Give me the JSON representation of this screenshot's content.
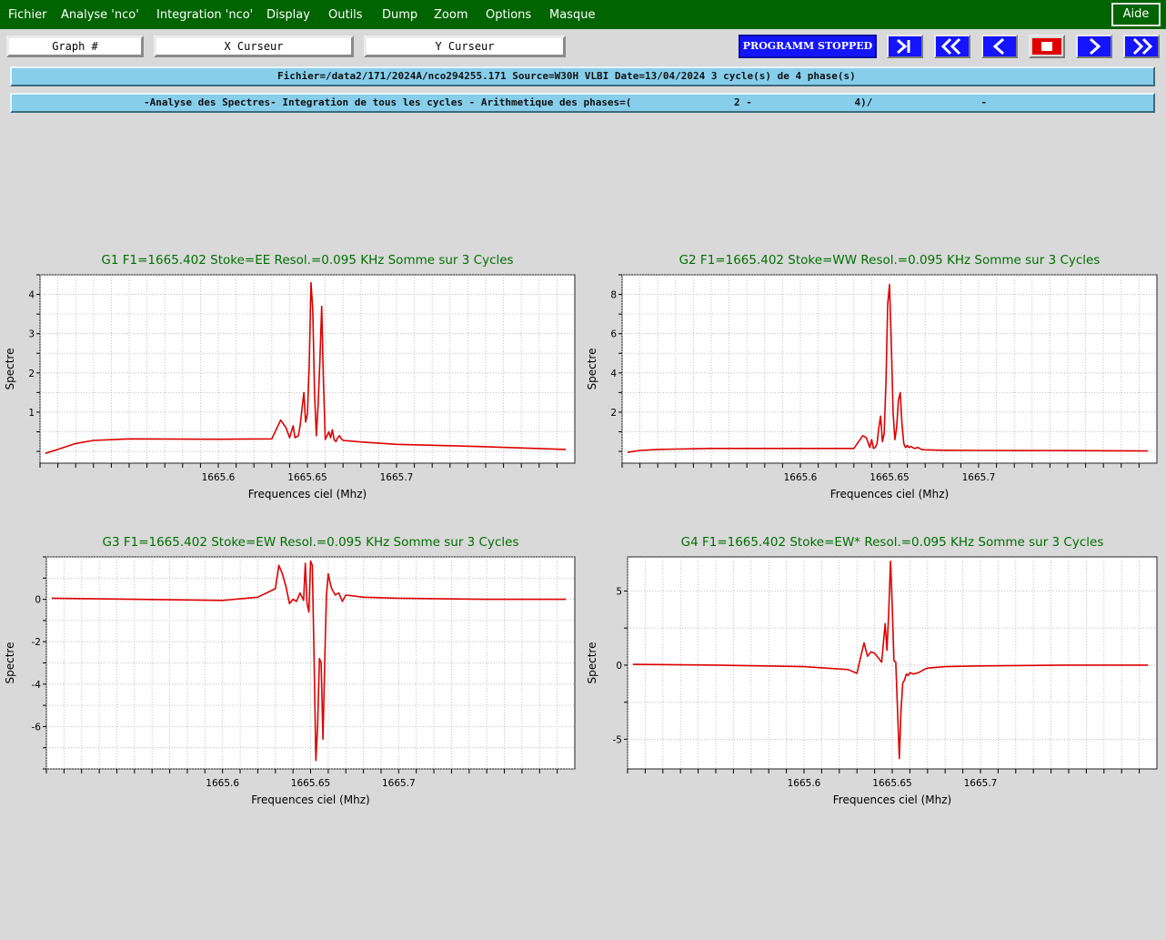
{
  "menu": {
    "items": [
      "Fichier",
      "Analyse 'nco'",
      "Integration 'nco'",
      "Display",
      "Outils",
      "Dump",
      "Zoom",
      "Options",
      "Masque"
    ],
    "help": "Aide"
  },
  "toolbar": {
    "graph_field": "Graph #",
    "x_cursor": "X Curseur",
    "y_cursor": "Y Curseur",
    "status": "PROGRAMM STOPPED",
    "nav_buttons": [
      "last-icon",
      "fast-back-icon",
      "back-icon",
      "stop-icon",
      "forward-icon",
      "fast-forward-icon"
    ],
    "status_color": "#1414ff"
  },
  "info": {
    "line1": "Fichier=/data2/171/2024A/nco294255.171 Source=W30H VLBI Date=13/04/2024 3 cycle(s) de 4 phase(s)",
    "line2": "-Analyse des Spectres- Integration de tous les cycles - Arithmetique des phases=(                 2 -                 4)/                  -"
  },
  "colors": {
    "menubar": "#006400",
    "info_bar": "#87ceeb",
    "series": "#dd0000",
    "title": "#007000"
  },
  "chart_data": [
    {
      "type": "line",
      "title": "G1 F1=1665.402 Stoke=EE Resol.=0.095 KHz Somme sur 3 Cycles",
      "xlabel": "Frequences ciel (Mhz)",
      "ylabel": "Spectre",
      "xlim": [
        1665.5,
        1665.8
      ],
      "ylim": [
        -0.3,
        4.5
      ],
      "xticks": [
        1665.6,
        1665.65,
        1665.7
      ],
      "xtick_labels": [
        "1665.6",
        "1665.65",
        "1665.7"
      ],
      "yticks": [
        1,
        2,
        3,
        4
      ],
      "ytick_labels": [
        "1",
        "2",
        "3",
        "4"
      ],
      "grid": true,
      "series": [
        {
          "x": [
            1665.503,
            1665.51,
            1665.52,
            1665.53,
            1665.55,
            1665.6,
            1665.63,
            1665.635,
            1665.638,
            1665.64,
            1665.642,
            1665.643,
            1665.645,
            1665.646,
            1665.647,
            1665.648,
            1665.649,
            1665.65,
            1665.651,
            1665.652,
            1665.653,
            1665.654,
            1665.655,
            1665.656,
            1665.657,
            1665.658,
            1665.659,
            1665.66,
            1665.661,
            1665.662,
            1665.663,
            1665.664,
            1665.665,
            1665.666,
            1665.667,
            1665.668,
            1665.669,
            1665.67,
            1665.68,
            1665.7,
            1665.75,
            1665.795
          ],
          "y": [
            -0.05,
            0.05,
            0.2,
            0.28,
            0.32,
            0.31,
            0.32,
            0.8,
            0.6,
            0.35,
            0.65,
            0.35,
            0.4,
            0.7,
            1.1,
            1.5,
            0.75,
            0.95,
            2.2,
            4.3,
            3.6,
            1.5,
            0.4,
            1.2,
            2.3,
            3.7,
            1.8,
            0.3,
            0.4,
            0.5,
            0.35,
            0.55,
            0.3,
            0.25,
            0.35,
            0.4,
            0.32,
            0.28,
            0.24,
            0.18,
            0.12,
            0.05
          ]
        }
      ]
    },
    {
      "type": "line",
      "title": "G2 F1=1665.402 Stoke=WW Resol.=0.095 KHz Somme sur 3 Cycles",
      "xlabel": "Frequences ciel (Mhz)",
      "ylabel": "Spectre",
      "xlim": [
        1665.5,
        1665.8
      ],
      "ylim": [
        -0.6,
        9.0
      ],
      "xticks": [
        1665.6,
        1665.65,
        1665.7
      ],
      "xtick_labels": [
        "1665.6",
        "1665.65",
        "1665.7"
      ],
      "yticks": [
        2,
        4,
        6,
        8
      ],
      "ytick_labels": [
        "2",
        "4",
        "6",
        "8"
      ],
      "grid": true,
      "series": [
        {
          "x": [
            1665.503,
            1665.51,
            1665.52,
            1665.53,
            1665.55,
            1665.6,
            1665.63,
            1665.635,
            1665.637,
            1665.639,
            1665.64,
            1665.641,
            1665.642,
            1665.643,
            1665.644,
            1665.645,
            1665.646,
            1665.647,
            1665.648,
            1665.649,
            1665.65,
            1665.651,
            1665.652,
            1665.653,
            1665.654,
            1665.655,
            1665.656,
            1665.657,
            1665.658,
            1665.659,
            1665.66,
            1665.661,
            1665.662,
            1665.664,
            1665.666,
            1665.668,
            1665.67,
            1665.68,
            1665.7,
            1665.75,
            1665.795
          ],
          "y": [
            -0.05,
            0.05,
            0.1,
            0.12,
            0.15,
            0.15,
            0.15,
            0.8,
            0.7,
            0.2,
            0.6,
            0.15,
            0.2,
            0.4,
            1.2,
            1.8,
            0.5,
            0.9,
            3.5,
            7.5,
            8.5,
            5.5,
            2.0,
            0.6,
            1.2,
            2.6,
            3.0,
            1.4,
            0.4,
            0.2,
            0.3,
            0.2,
            0.25,
            0.15,
            0.2,
            0.1,
            0.08,
            0.06,
            0.05,
            0.04,
            0.02
          ]
        }
      ]
    },
    {
      "type": "line",
      "title": "G3 F1=1665.402 Stoke=EW Resol.=0.095 KHz Somme sur 3 Cycles",
      "xlabel": "Frequences ciel (Mhz)",
      "ylabel": "Spectre",
      "xlim": [
        1665.5,
        1665.8
      ],
      "ylim": [
        -8.0,
        2.0
      ],
      "xticks": [
        1665.6,
        1665.65,
        1665.7
      ],
      "xtick_labels": [
        "1665.6",
        "1665.65",
        "1665.7"
      ],
      "yticks": [
        0,
        -2,
        -4,
        -6
      ],
      "ytick_labels": [
        "0",
        "-2",
        "-4",
        "-6"
      ],
      "grid": true,
      "series": [
        {
          "x": [
            1665.503,
            1665.55,
            1665.6,
            1665.62,
            1665.63,
            1665.632,
            1665.634,
            1665.636,
            1665.638,
            1665.64,
            1665.642,
            1665.644,
            1665.646,
            1665.647,
            1665.648,
            1665.649,
            1665.65,
            1665.651,
            1665.652,
            1665.653,
            1665.654,
            1665.655,
            1665.656,
            1665.657,
            1665.658,
            1665.659,
            1665.66,
            1665.661,
            1665.662,
            1665.664,
            1665.666,
            1665.668,
            1665.67,
            1665.68,
            1665.7,
            1665.75,
            1665.795
          ],
          "y": [
            0.05,
            0.0,
            -0.05,
            0.1,
            0.5,
            1.6,
            1.2,
            0.6,
            -0.2,
            0.0,
            -0.1,
            0.3,
            -0.05,
            1.7,
            -0.2,
            -0.6,
            1.8,
            1.6,
            -3.0,
            -7.6,
            -6.0,
            -2.8,
            -3.0,
            -6.6,
            -3.0,
            0.2,
            1.2,
            0.8,
            0.5,
            0.2,
            0.3,
            -0.1,
            0.2,
            0.1,
            0.05,
            0.0,
            0.0
          ]
        }
      ]
    },
    {
      "type": "line",
      "title": "G4 F1=1665.402 Stoke=EW* Resol.=0.095 KHz Somme sur 3 Cycles",
      "xlabel": "Frequences ciel (Mhz)",
      "ylabel": "Spectre",
      "xlim": [
        1665.5,
        1665.8
      ],
      "ylim": [
        -7.0,
        7.3
      ],
      "xticks": [
        1665.6,
        1665.65,
        1665.7
      ],
      "xtick_labels": [
        "1665.6",
        "1665.65",
        "1665.7"
      ],
      "yticks": [
        5,
        0,
        -5
      ],
      "ytick_labels": [
        "5",
        "0",
        "-5"
      ],
      "grid": true,
      "series": [
        {
          "x": [
            1665.503,
            1665.55,
            1665.6,
            1665.625,
            1665.63,
            1665.632,
            1665.634,
            1665.636,
            1665.638,
            1665.64,
            1665.642,
            1665.644,
            1665.646,
            1665.647,
            1665.648,
            1665.649,
            1665.65,
            1665.651,
            1665.652,
            1665.653,
            1665.654,
            1665.655,
            1665.656,
            1665.657,
            1665.658,
            1665.659,
            1665.66,
            1665.662,
            1665.665,
            1665.668,
            1665.67,
            1665.68,
            1665.7,
            1665.75,
            1665.795
          ],
          "y": [
            0.05,
            0.0,
            -0.1,
            -0.3,
            -0.55,
            0.5,
            1.5,
            0.6,
            0.9,
            0.8,
            0.5,
            0.2,
            2.8,
            1.0,
            3.5,
            7.0,
            4.0,
            0.3,
            0.2,
            -3.0,
            -6.3,
            -3.0,
            -1.2,
            -1.0,
            -0.6,
            -0.7,
            -0.5,
            -0.6,
            -0.5,
            -0.3,
            -0.2,
            -0.1,
            -0.05,
            0.0,
            0.0
          ]
        }
      ]
    }
  ]
}
